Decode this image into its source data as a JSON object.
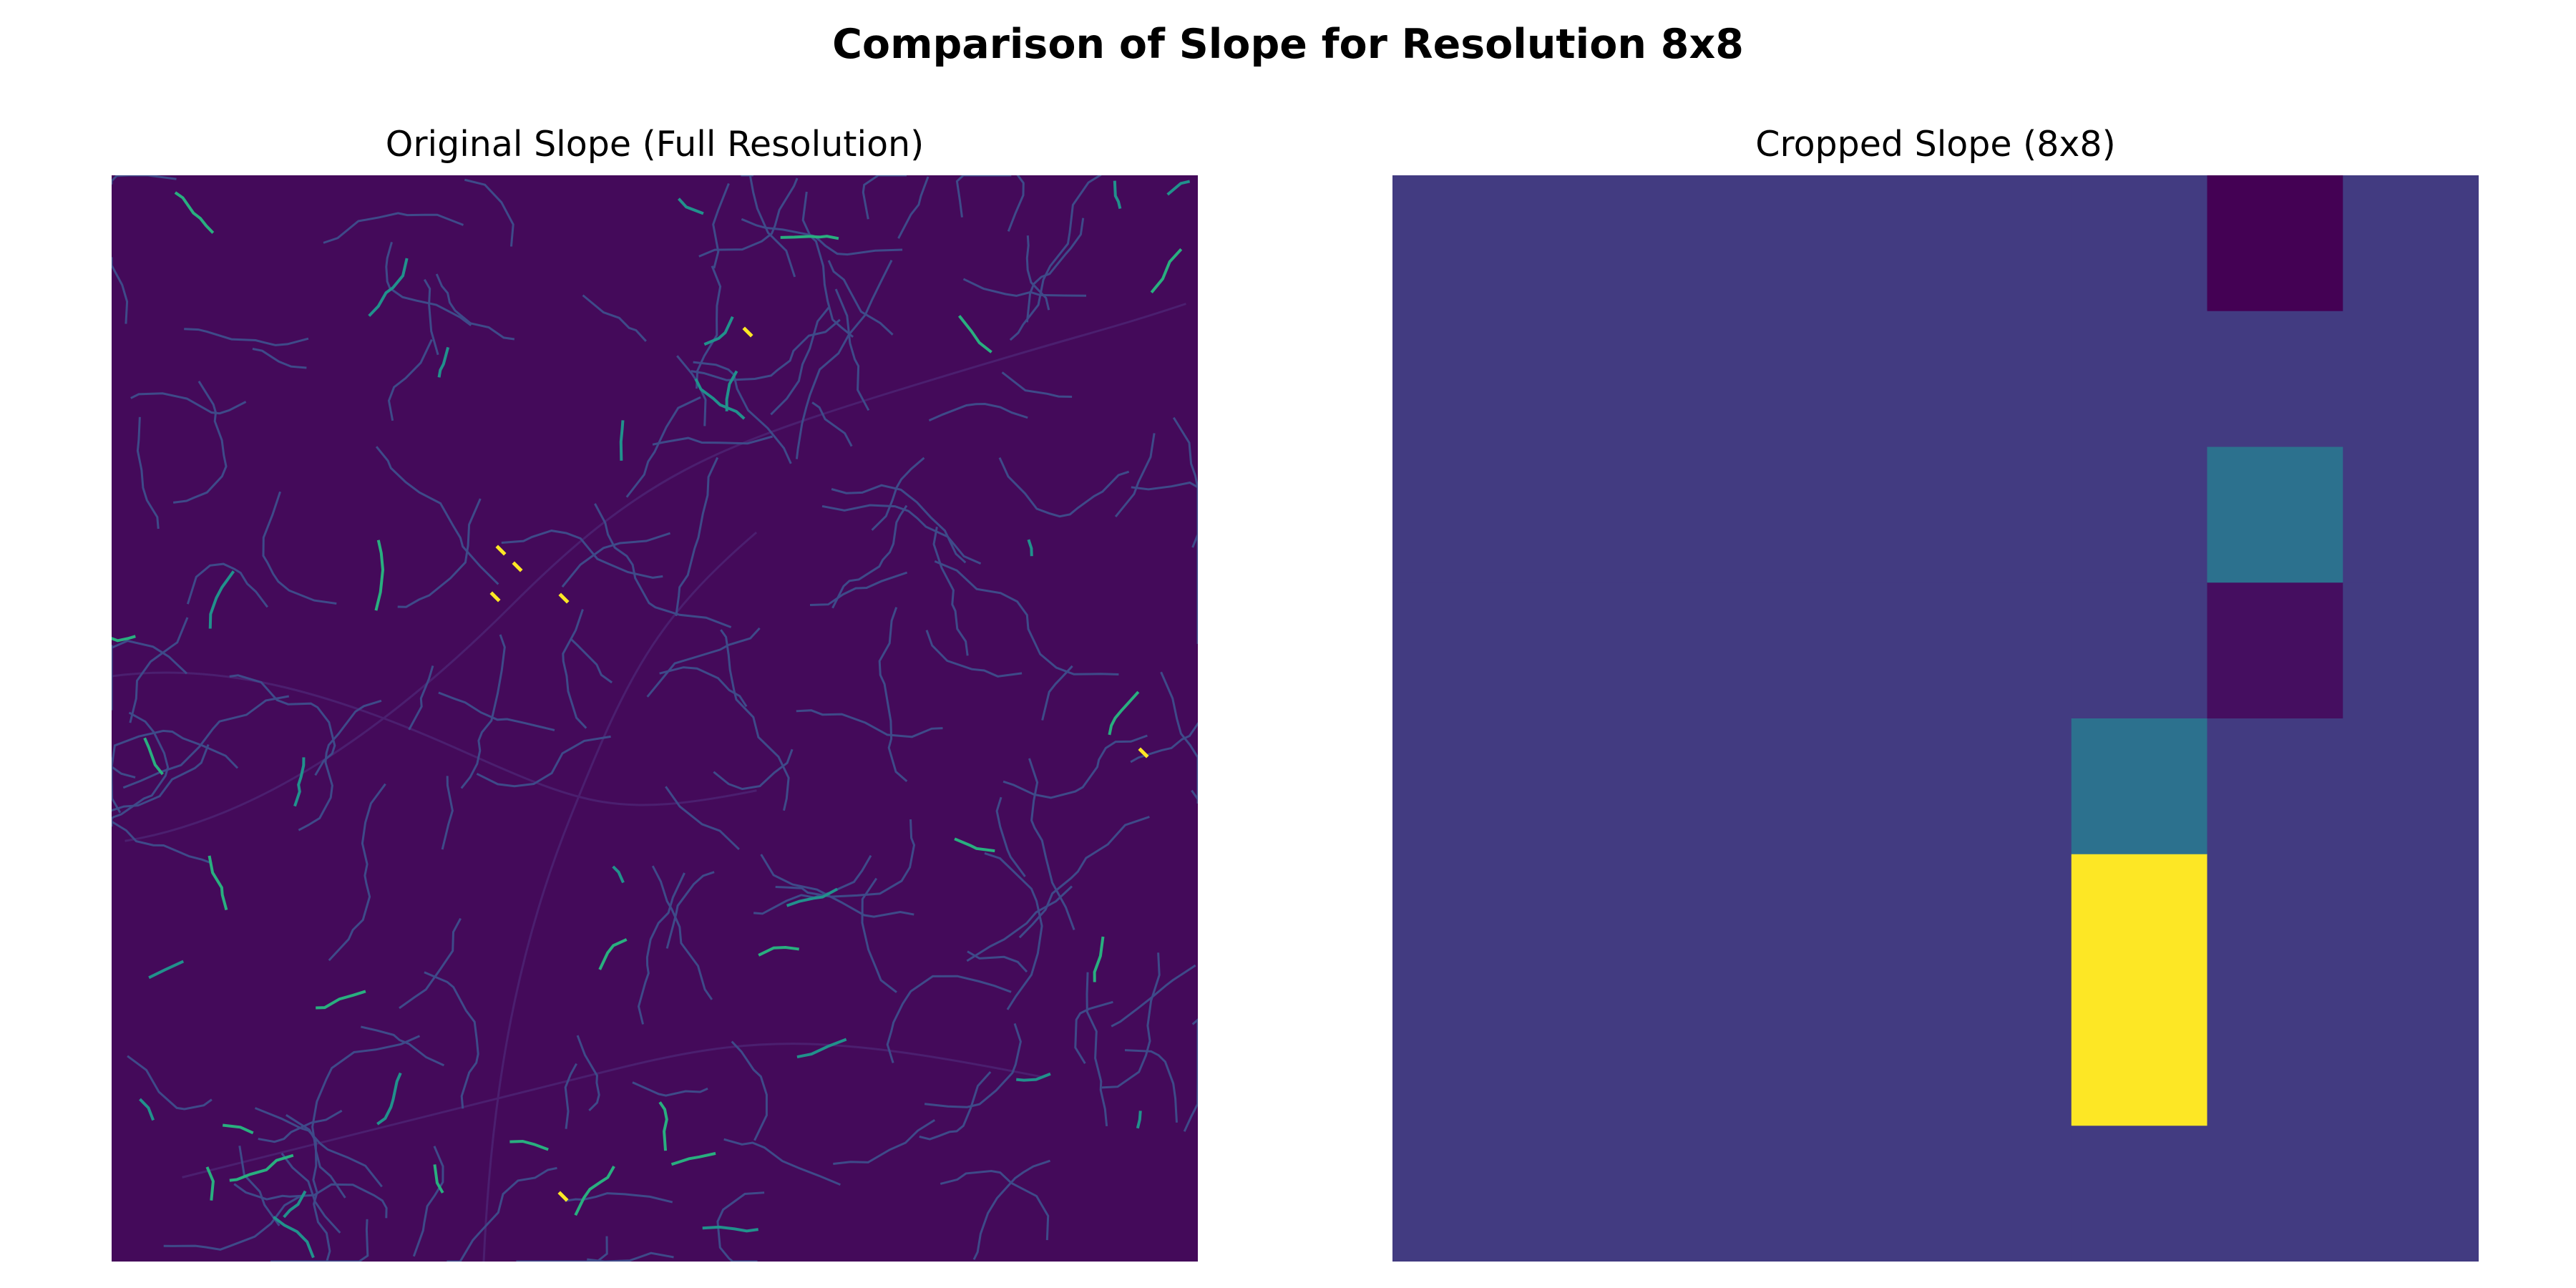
{
  "figure": {
    "title": "Comparison of Slope for Resolution 8x8"
  },
  "chart_data": [
    {
      "type": "heatmap",
      "title": "Original Slope (Full Resolution)",
      "colormap": "viridis",
      "axes": "off",
      "background_color": "#440a5a",
      "channel_color": "#3e4a89",
      "highlight_colors": [
        "#21918c",
        "#29af7f",
        "#fde725"
      ],
      "description_values": "full-resolution raster dominated by low slope with thin drainage-channel features"
    },
    {
      "type": "heatmap",
      "title": "Cropped Slope (8x8)",
      "colormap": "viridis",
      "axes": "off",
      "grid_size": [
        8,
        8
      ],
      "vmin": 0,
      "vmax": 1,
      "values": [
        [
          0.18,
          0.18,
          0.18,
          0.18,
          0.18,
          0.18,
          0.0,
          0.18
        ],
        [
          0.18,
          0.18,
          0.18,
          0.18,
          0.18,
          0.18,
          0.18,
          0.18
        ],
        [
          0.18,
          0.18,
          0.18,
          0.18,
          0.18,
          0.18,
          0.38,
          0.18
        ],
        [
          0.18,
          0.18,
          0.18,
          0.18,
          0.18,
          0.18,
          0.04,
          0.18
        ],
        [
          0.18,
          0.18,
          0.18,
          0.18,
          0.18,
          0.38,
          0.18,
          0.18
        ],
        [
          0.18,
          0.18,
          0.18,
          0.18,
          0.18,
          1.0,
          0.18,
          0.18
        ],
        [
          0.18,
          0.18,
          0.18,
          0.18,
          0.18,
          1.0,
          0.18,
          0.18
        ],
        [
          0.18,
          0.18,
          0.18,
          0.18,
          0.18,
          0.18,
          0.18,
          0.18
        ]
      ]
    }
  ]
}
